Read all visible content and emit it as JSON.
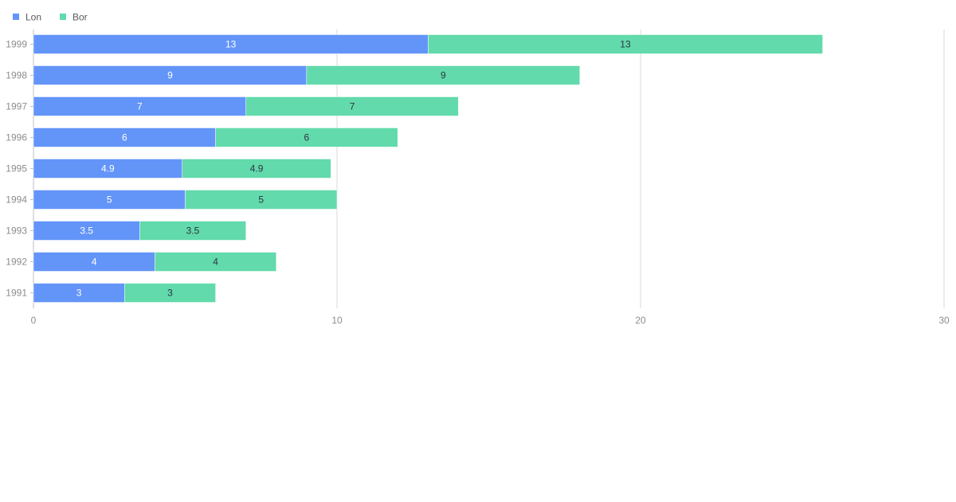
{
  "chart_data": {
    "type": "bar",
    "orientation": "horizontal",
    "stacked": true,
    "categories": [
      "1999",
      "1998",
      "1997",
      "1996",
      "1995",
      "1994",
      "1993",
      "1992",
      "1991"
    ],
    "series": [
      {
        "name": "Lon",
        "color": "#6395f9",
        "label_color": "#ffffff",
        "values": [
          13,
          9,
          7,
          6,
          4.9,
          5,
          3.5,
          4,
          3
        ]
      },
      {
        "name": "Bor",
        "color": "#62daab",
        "label_color": "#2c3542",
        "values": [
          13,
          9,
          7,
          6,
          4.9,
          5,
          3.5,
          4,
          3
        ]
      }
    ],
    "xlim": [
      0,
      30
    ],
    "xticks": [
      0,
      10,
      20,
      30
    ],
    "grid": true,
    "legend_position": "top-left",
    "title": "",
    "xlabel": "",
    "ylabel": ""
  }
}
